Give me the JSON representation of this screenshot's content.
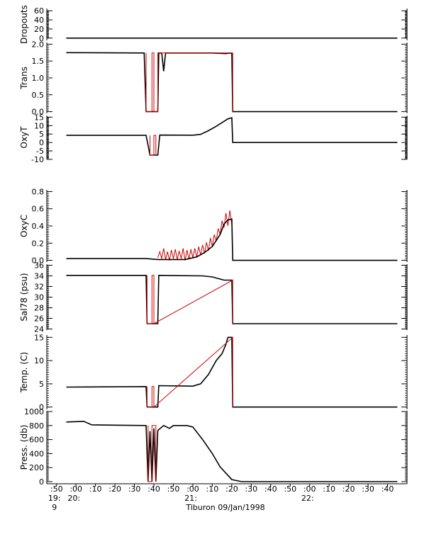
{
  "chart_data": {
    "type": "line",
    "xlabel": "Tiburon 09/Jan/1998",
    "x_ticks": [
      {
        "label": ":50",
        "sub": "19:",
        "sub2": "9"
      },
      {
        "label": ":00",
        "sub": "20:"
      },
      {
        "label": ":10"
      },
      {
        "label": ":20"
      },
      {
        "label": ":30"
      },
      {
        "label": ":40"
      },
      {
        "label": ":50"
      },
      {
        "label": ":00",
        "sub": "21:"
      },
      {
        "label": ":10"
      },
      {
        "label": ":20"
      },
      {
        "label": ":30"
      },
      {
        "label": ":40"
      },
      {
        "label": ":50"
      },
      {
        "label": ":00",
        "sub": "22:"
      },
      {
        "label": ":10"
      },
      {
        "label": ":20"
      },
      {
        "label": ":30"
      },
      {
        "label": ":40"
      }
    ],
    "x_unit": "minutes after 19:50",
    "panels": [
      {
        "ylabel": "Dropouts",
        "ylim": [
          -5,
          65
        ],
        "yticks": [
          "60",
          "40",
          "20",
          "0"
        ],
        "ytick_values": [
          60,
          40,
          20,
          0
        ],
        "series": [
          {
            "color": "#000000",
            "points": [
              [
                5,
                0
              ],
              [
                175,
                0
              ]
            ]
          }
        ]
      },
      {
        "ylabel": "Trans",
        "ylim": [
          -0.05,
          2.05
        ],
        "yticks": [
          "2.0",
          "1.5",
          "1.0",
          "0.5",
          "0.0"
        ],
        "ytick_values": [
          2.0,
          1.5,
          1.0,
          0.5,
          0.0
        ],
        "series": [
          {
            "color": "#000000",
            "points": [
              [
                5,
                1.75
              ],
              [
                45,
                1.74
              ],
              [
                46,
                0.0
              ],
              [
                52,
                0.0
              ],
              [
                52.5,
                1.74
              ],
              [
                54,
                1.74
              ],
              [
                55,
                1.2
              ],
              [
                56,
                1.74
              ],
              [
                80,
                1.74
              ],
              [
                87,
                1.72
              ],
              [
                89,
                1.74
              ],
              [
                90,
                1.72
              ],
              [
                90.5,
                0.0
              ],
              [
                175,
                0.0
              ]
            ]
          },
          {
            "color": "#cc0000",
            "points": [
              [
                46,
                1.74
              ],
              [
                46,
                0.0
              ],
              [
                49,
                0.0
              ],
              [
                49,
                1.74
              ],
              [
                50,
                1.74
              ],
              [
                50,
                0.0
              ],
              [
                52,
                0.0
              ],
              [
                52,
                1.74
              ],
              [
                90.5,
                1.74
              ],
              [
                90.5,
                0.0
              ]
            ]
          }
        ]
      },
      {
        "ylabel": "OxyT",
        "ylim": [
          -10,
          16
        ],
        "yticks": [
          "15",
          "10",
          "5",
          "0",
          "-5",
          "-10"
        ],
        "ytick_values": [
          15,
          10,
          5,
          0,
          -5,
          -10
        ],
        "series": [
          {
            "color": "#000000",
            "points": [
              [
                5,
                4.2
              ],
              [
                46,
                4.2
              ],
              [
                48,
                -7.5
              ],
              [
                52,
                -7.5
              ],
              [
                53,
                4.4
              ],
              [
                70,
                4.3
              ],
              [
                74,
                4.8
              ],
              [
                78,
                7.0
              ],
              [
                82,
                9.6
              ],
              [
                86,
                12.5
              ],
              [
                88,
                14.0
              ],
              [
                90,
                14.6
              ],
              [
                90.5,
                0.0
              ],
              [
                175,
                0.0
              ]
            ]
          },
          {
            "color": "#cc0000",
            "points": [
              [
                48,
                4.2
              ],
              [
                48,
                -7.5
              ],
              [
                50,
                -7.5
              ],
              [
                50,
                4.2
              ],
              [
                51,
                4.2
              ],
              [
                51,
                -7.5
              ]
            ]
          }
        ]
      },
      {
        "ylabel": "OxyC",
        "ylim": [
          -0.02,
          0.82
        ],
        "yticks": [
          "0.8",
          "0.6",
          "0.4",
          "0.2",
          "0.0"
        ],
        "ytick_values": [
          0.8,
          0.6,
          0.4,
          0.2,
          0.0
        ],
        "series": [
          {
            "color": "#cc0000",
            "points": [
              [
                52,
                0.03
              ],
              [
                53,
                0.1
              ],
              [
                54,
                0.02
              ],
              [
                55,
                0.14
              ],
              [
                56,
                0.01
              ],
              [
                57,
                0.1
              ],
              [
                58,
                0.0
              ],
              [
                59,
                0.12
              ],
              [
                60,
                0.02
              ],
              [
                61,
                0.13
              ],
              [
                62,
                0.01
              ],
              [
                63,
                0.11
              ],
              [
                64,
                0.02
              ],
              [
                65,
                0.14
              ],
              [
                66,
                0.0
              ],
              [
                67,
                0.12
              ],
              [
                68,
                0.01
              ],
              [
                69,
                0.13
              ],
              [
                70,
                0.03
              ],
              [
                71,
                0.14
              ],
              [
                72,
                0.04
              ],
              [
                73,
                0.16
              ],
              [
                74,
                0.06
              ],
              [
                75,
                0.18
              ],
              [
                76,
                0.08
              ],
              [
                77,
                0.21
              ],
              [
                78,
                0.11
              ],
              [
                79,
                0.26
              ],
              [
                80,
                0.16
              ],
              [
                81,
                0.3
              ],
              [
                82,
                0.22
              ],
              [
                83,
                0.37
              ],
              [
                84,
                0.3
              ],
              [
                85,
                0.46
              ],
              [
                86,
                0.38
              ],
              [
                87,
                0.55
              ],
              [
                88,
                0.4
              ],
              [
                89,
                0.58
              ],
              [
                90,
                0.42
              ],
              [
                90.5,
                0.0
              ]
            ]
          },
          {
            "color": "#000000",
            "points": [
              [
                5,
                0.02
              ],
              [
                46,
                0.02
              ],
              [
                52,
                0.01
              ],
              [
                60,
                0.01
              ],
              [
                66,
                0.01
              ],
              [
                72,
                0.04
              ],
              [
                76,
                0.09
              ],
              [
                80,
                0.16
              ],
              [
                84,
                0.3
              ],
              [
                86,
                0.42
              ],
              [
                88,
                0.47
              ],
              [
                90,
                0.48
              ],
              [
                90.5,
                0.0
              ],
              [
                175,
                0.0
              ]
            ]
          }
        ]
      },
      {
        "ylabel": "Sal78 (psu)",
        "ylim": [
          23.8,
          36.2
        ],
        "yticks": [
          "36",
          "34",
          "32",
          "30",
          "28",
          "26",
          "24"
        ],
        "ytick_values": [
          36,
          34,
          32,
          30,
          28,
          26,
          24
        ],
        "series": [
          {
            "color": "#000000",
            "points": [
              [
                5,
                34.1
              ],
              [
                46,
                34.1
              ],
              [
                46.5,
                25.0
              ],
              [
                52,
                25.0
              ],
              [
                52.5,
                34.1
              ],
              [
                75,
                34.0
              ],
              [
                80,
                33.8
              ],
              [
                84,
                33.4
              ],
              [
                86,
                33.2
              ],
              [
                90,
                33.2
              ],
              [
                90.5,
                25.0
              ],
              [
                175,
                25.0
              ]
            ]
          },
          {
            "color": "#cc0000",
            "points": [
              [
                46.5,
                34.1
              ],
              [
                46.5,
                25.0
              ],
              [
                49,
                25.0
              ],
              [
                49,
                34.1
              ],
              [
                50,
                34.1
              ],
              [
                50,
                25.0
              ],
              [
                90.5,
                33.2
              ],
              [
                90.5,
                25.0
              ]
            ]
          }
        ]
      },
      {
        "ylabel": "Temp. (C)",
        "ylim": [
          -0.5,
          15.5
        ],
        "yticks": [
          "15",
          "10",
          "5",
          "0"
        ],
        "ytick_values": [
          15,
          10,
          5,
          0
        ],
        "series": [
          {
            "color": "#000000",
            "points": [
              [
                5,
                4.3
              ],
              [
                46,
                4.4
              ],
              [
                46.5,
                0.0
              ],
              [
                52,
                0.0
              ],
              [
                52.5,
                4.6
              ],
              [
                70,
                4.5
              ],
              [
                74,
                5.0
              ],
              [
                78,
                7.0
              ],
              [
                82,
                10.0
              ],
              [
                85,
                11.5
              ],
              [
                87,
                13.5
              ],
              [
                88,
                15.0
              ],
              [
                90,
                15.0
              ],
              [
                90.5,
                0.0
              ],
              [
                175,
                0.0
              ]
            ]
          },
          {
            "color": "#cc0000",
            "points": [
              [
                46.5,
                4.4
              ],
              [
                46.5,
                0.0
              ],
              [
                49,
                0.0
              ],
              [
                49,
                4.4
              ],
              [
                50,
                4.4
              ],
              [
                50,
                0.0
              ],
              [
                90.5,
                15.0
              ],
              [
                90.5,
                0.0
              ]
            ]
          }
        ]
      },
      {
        "ylabel": "Press. (db)",
        "ylim": [
          -30,
          1010
        ],
        "yticks": [
          "1000",
          "800",
          "600",
          "400",
          "200",
          "0"
        ],
        "ytick_values": [
          1000,
          800,
          600,
          400,
          200,
          0
        ],
        "series": [
          {
            "color": "#000000",
            "points": [
              [
                5,
                850
              ],
              [
                14,
                860
              ],
              [
                18,
                810
              ],
              [
                30,
                805
              ],
              [
                46,
                800
              ],
              [
                47,
                0
              ],
              [
                48,
                720
              ],
              [
                49,
                0
              ],
              [
                50,
                760
              ],
              [
                51,
                0
              ],
              [
                52,
                730
              ],
              [
                55,
                800
              ],
              [
                58,
                760
              ],
              [
                60,
                800
              ],
              [
                67,
                800
              ],
              [
                70,
                780
              ],
              [
                75,
                600
              ],
              [
                80,
                400
              ],
              [
                84,
                210
              ],
              [
                87,
                120
              ],
              [
                90,
                30
              ],
              [
                95,
                0
              ],
              [
                175,
                0
              ]
            ]
          },
          {
            "color": "#cc0000",
            "points": [
              [
                47,
                800
              ],
              [
                47,
                0
              ],
              [
                49,
                0
              ],
              [
                49,
                800
              ],
              [
                51,
                800
              ],
              [
                51,
                0
              ]
            ]
          }
        ]
      }
    ]
  }
}
